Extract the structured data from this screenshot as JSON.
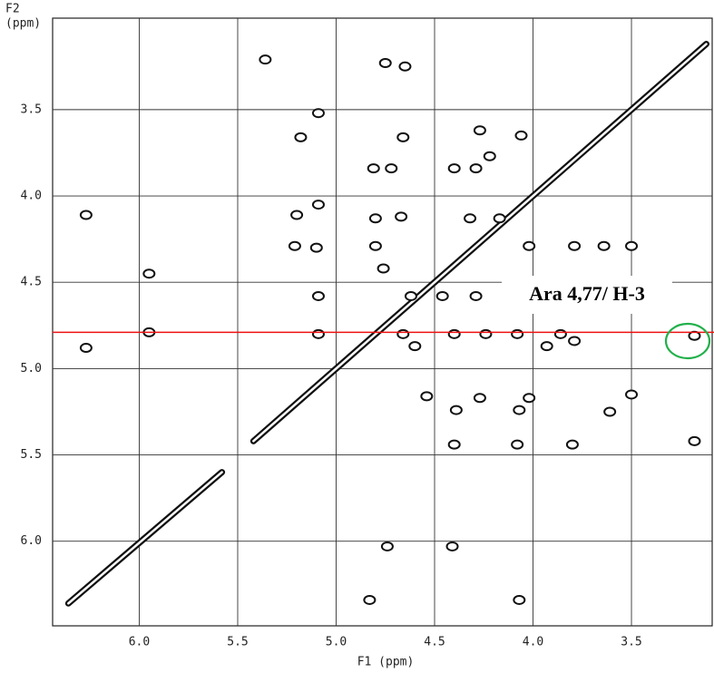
{
  "chart_data": {
    "type": "scatter",
    "xlabel": "F1 (ppm)",
    "ylabel": [
      "F2",
      "(ppm)"
    ],
    "xlim": [
      6.44,
      3.09
    ],
    "ylim": [
      2.97,
      6.49
    ],
    "xticks": [
      {
        "value": 6,
        "label": "6.0"
      },
      5.5,
      {
        "value": 5,
        "label": "5.0"
      },
      4.5,
      {
        "value": 4,
        "label": "4.0"
      },
      3.5
    ],
    "yticks": [
      3.5,
      {
        "value": 4,
        "label": "4.0"
      },
      4.5,
      {
        "value": 5,
        "label": "5.0"
      },
      5.5,
      {
        "value": 6,
        "label": "6.0"
      }
    ],
    "grid": true,
    "color": "#111111",
    "x": [
      5.36,
      4.75,
      4.65,
      5.09,
      5.18,
      4.66,
      4.27,
      4.22,
      4.06,
      4.81,
      4.72,
      4.4,
      4.29,
      5.09,
      5.2,
      4.67,
      4.8,
      4.32,
      4.17,
      6.27,
      5.95,
      5.95,
      5.1,
      5.21,
      4.8,
      4.76,
      4.02,
      3.79,
      3.64,
      3.5,
      5.09,
      4.62,
      4.46,
      4.29,
      5.09,
      4.66,
      4.4,
      4.24,
      4.08,
      3.86,
      3.79,
      3.18,
      4.54,
      4.27,
      4.02,
      3.5,
      4.39,
      4.07,
      3.61,
      3.18,
      3.8,
      4.4,
      4.08,
      4.74,
      4.41,
      4.83,
      4.07,
      6.27,
      4.6,
      3.93
    ],
    "y": [
      3.21,
      3.23,
      3.25,
      3.52,
      3.66,
      3.66,
      3.62,
      3.77,
      3.65,
      3.84,
      3.84,
      3.84,
      3.84,
      4.05,
      4.11,
      4.12,
      4.13,
      4.13,
      4.13,
      4.11,
      4.45,
      4.79,
      4.3,
      4.29,
      4.29,
      4.42,
      4.29,
      4.29,
      4.29,
      4.29,
      4.58,
      4.58,
      4.58,
      4.58,
      4.8,
      4.8,
      4.8,
      4.8,
      4.8,
      4.8,
      4.84,
      4.81,
      5.16,
      5.17,
      5.17,
      5.15,
      5.24,
      5.24,
      5.25,
      5.42,
      5.44,
      5.44,
      5.44,
      6.03,
      6.03,
      6.34,
      6.34,
      4.88,
      4.87,
      4.87
    ],
    "diagonal": {
      "x": [
        6.36,
        5.58,
        5.5,
        5.42,
        3.12
      ],
      "y": [
        6.36,
        5.6,
        null,
        5.42,
        3.12
      ]
    },
    "hline": {
      "value": 4.79,
      "color": "#ee1111"
    },
    "annotation": "Ara 4,77/ H-3"
  }
}
